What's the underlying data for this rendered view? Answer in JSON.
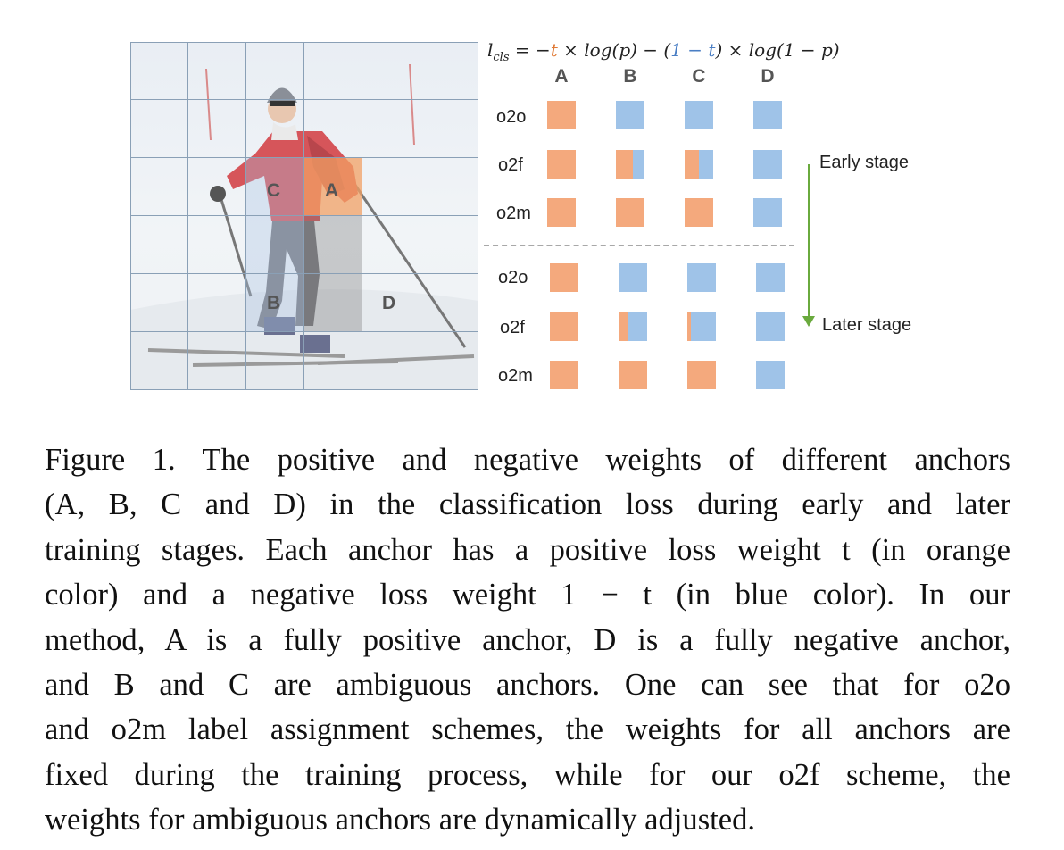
{
  "figure": {
    "formula": {
      "lhs": "l",
      "lhs_sub": "cls",
      "part1": " = −",
      "t1": "t",
      "part2": " × log(p) − ",
      "paren_open": "(",
      "one_minus_t": "1 − t",
      "paren_close": ")",
      "part3": " × log(1 − p)"
    },
    "columns": [
      "A",
      "B",
      "C",
      "D"
    ],
    "rows": [
      "o2o",
      "o2f",
      "o2m",
      "o2o",
      "o2f",
      "o2m"
    ],
    "positive_fraction_early": {
      "o2o": [
        1,
        0,
        0,
        0
      ],
      "o2f": [
        1,
        0.6,
        0.5,
        0
      ],
      "o2m": [
        1,
        1,
        1,
        0
      ]
    },
    "positive_fraction_later": {
      "o2o": [
        1,
        0,
        0,
        0
      ],
      "o2f": [
        1,
        0.3,
        0.12,
        0
      ],
      "o2m": [
        1,
        1,
        1,
        0
      ]
    },
    "colors": {
      "positive": "#f4a97d",
      "negative": "#9fc3e8",
      "arrow": "#6aaa3e"
    },
    "image_labels": {
      "a": "A",
      "b": "B",
      "c": "C",
      "d": "D"
    },
    "early_stage": "Early stage",
    "later_stage": "Later stage"
  },
  "caption": {
    "lines": [
      "Figure 1.  The positive and negative weights of different anchors",
      "(A, B, C and D) in the classification loss during early and later",
      "training stages. Each anchor has a positive loss weight t (in orange",
      "color) and a negative loss weight 1 − t (in blue color).  In our",
      "method, A is a fully positive anchor, D is a fully negative anchor,",
      "and B and C are ambiguous anchors.  One can see that for o2o",
      "and o2m label assignment schemes, the weights for all anchors are",
      "fixed during the training process, while for our o2f scheme, the",
      "weights for ambiguous anchors are dynamically adjusted."
    ]
  }
}
